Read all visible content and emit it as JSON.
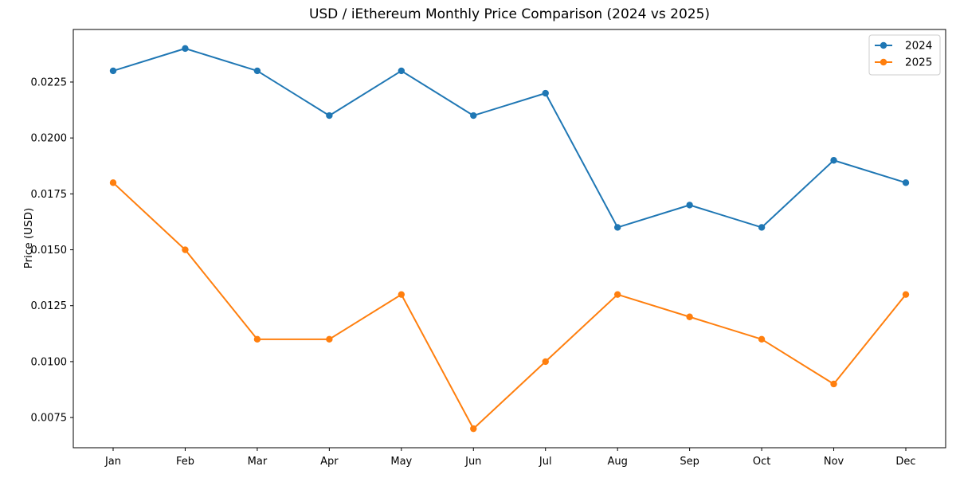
{
  "chart_data": {
    "type": "line",
    "title": "USD / iEthereum Monthly Price Comparison (2024 vs 2025)",
    "xlabel": "",
    "ylabel": "Price (USD)",
    "categories": [
      "Jan",
      "Feb",
      "Mar",
      "Apr",
      "May",
      "Jun",
      "Jul",
      "Aug",
      "Sep",
      "Oct",
      "Nov",
      "Dec"
    ],
    "series": [
      {
        "name": "2024",
        "color": "#1f77b4",
        "values": [
          0.023,
          0.024,
          0.023,
          0.021,
          0.023,
          0.021,
          0.022,
          0.016,
          0.017,
          0.016,
          0.019,
          0.018
        ]
      },
      {
        "name": "2025",
        "color": "#ff7f0e",
        "values": [
          0.018,
          0.015,
          0.011,
          0.011,
          0.013,
          0.007,
          0.01,
          0.013,
          0.012,
          0.011,
          0.009,
          0.013
        ]
      }
    ],
    "ylim": [
      0.00615,
      0.02485
    ],
    "yticks": [
      0.0075,
      0.01,
      0.0125,
      0.015,
      0.0175,
      0.02,
      0.0225
    ],
    "ytick_format_decimals": 4,
    "legend_position": "upper right",
    "grid": false,
    "marker": "circle",
    "background_color": "#ffffff",
    "spine_color": "#000000",
    "legend_border_color": "#cccccc"
  }
}
